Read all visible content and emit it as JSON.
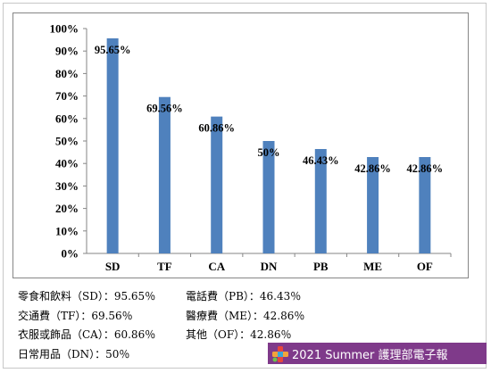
{
  "chart_data": {
    "type": "bar",
    "categories": [
      "SD",
      "TF",
      "CA",
      "DN",
      "PB",
      "ME",
      "OF"
    ],
    "values": [
      95.65,
      69.56,
      60.86,
      50,
      46.43,
      42.86,
      42.86
    ],
    "data_labels": [
      "95.65%",
      "69.56%",
      "60.86%",
      "50%",
      "46.43%",
      "42.86%",
      "42.86%"
    ],
    "yticks": [
      "0%",
      "10%",
      "20%",
      "30%",
      "40%",
      "50%",
      "60%",
      "70%",
      "80%",
      "90%",
      "100%"
    ],
    "ylim": [
      0,
      100
    ],
    "bar_color": "#4f81bd",
    "grid": false,
    "title": "",
    "xlabel": "",
    "ylabel": ""
  },
  "legend": {
    "rows": [
      [
        "零食和飲料（SD）：95.65％",
        "電話費（PB）：46.43％"
      ],
      [
        "交通費（TF）：69.56％",
        "醫療費（ME）：42.86％"
      ],
      [
        "衣服或飾品（CA）：60.86％",
        "其他（OF）：42.86％"
      ],
      [
        "日常用品（DN）：50％",
        ""
      ]
    ]
  },
  "banner": {
    "text": "2021 Summer 護理部電子報",
    "color": "#7f3a8a",
    "icon": "cross-heart-icon"
  }
}
